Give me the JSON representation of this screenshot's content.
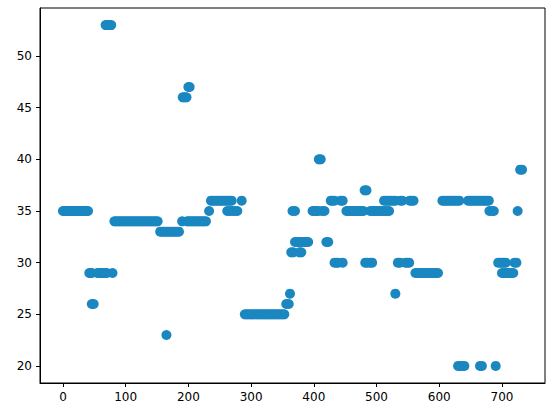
{
  "chart_data": {
    "type": "scatter",
    "color": "#1a87c0",
    "marker": "circle",
    "grid": false,
    "xlim": [
      -36.6,
      768.6
    ],
    "xticks": [
      0,
      100,
      200,
      300,
      400,
      500,
      600,
      700
    ],
    "ylim": [
      18.35,
      54.65
    ],
    "yticks": [
      20,
      25,
      30,
      35,
      40,
      45,
      50
    ],
    "x": [
      0,
      2,
      4,
      6,
      8,
      10,
      12,
      14,
      16,
      18,
      20,
      22,
      24,
      26,
      28,
      30,
      32,
      34,
      36,
      38,
      40,
      42,
      44,
      46,
      55,
      58,
      61,
      64,
      67,
      70,
      79,
      46,
      49,
      68,
      71,
      74,
      77,
      82,
      85,
      88,
      91,
      94,
      97,
      100,
      103,
      106,
      109,
      112,
      115,
      118,
      121,
      124,
      127,
      130,
      133,
      136,
      139,
      142,
      145,
      148,
      151,
      155,
      158,
      161,
      164,
      167,
      170,
      173,
      176,
      179,
      182,
      185,
      165,
      190,
      198,
      201,
      204,
      207,
      210,
      213,
      216,
      219,
      222,
      225,
      228,
      191,
      194,
      197,
      200,
      202,
      233,
      262,
      266,
      270,
      274,
      278,
      236,
      239,
      242,
      245,
      248,
      251,
      254,
      257,
      260,
      263,
      266,
      269,
      285,
      290,
      293,
      296,
      299,
      302,
      305,
      308,
      311,
      314,
      317,
      320,
      323,
      326,
      329,
      332,
      335,
      338,
      341,
      344,
      347,
      350,
      353,
      356,
      360,
      362,
      364,
      367,
      377,
      380,
      366,
      370,
      398,
      401,
      404,
      407,
      413,
      417,
      370,
      373,
      376,
      379,
      382,
      385,
      388,
      391,
      408,
      411,
      420,
      423,
      427,
      430,
      433,
      443,
      446,
      433,
      436,
      439,
      446,
      452,
      455,
      458,
      461,
      464,
      467,
      470,
      473,
      476,
      479,
      481,
      484,
      482,
      485,
      490,
      493,
      490,
      493,
      496,
      499,
      502,
      505,
      508,
      511,
      514,
      517,
      520,
      512,
      515,
      518,
      521,
      524,
      527,
      530,
      538,
      541,
      553,
      556,
      559,
      530,
      534,
      537,
      546,
      549,
      552,
      562,
      565,
      568,
      571,
      574,
      577,
      580,
      583,
      586,
      589,
      592,
      595,
      598,
      605,
      608,
      611,
      614,
      617,
      620,
      623,
      626,
      629,
      632,
      646,
      649,
      652,
      655,
      658,
      661,
      664,
      667,
      670,
      673,
      676,
      679,
      630,
      633,
      636,
      640,
      665,
      668,
      690,
      680,
      684,
      687,
      694,
      697,
      700,
      703,
      706,
      720,
      723,
      700,
      703,
      706,
      709,
      712,
      715,
      718,
      725,
      729,
      732
    ],
    "values": [
      35,
      35,
      35,
      35,
      35,
      35,
      35,
      35,
      35,
      35,
      35,
      35,
      35,
      35,
      35,
      35,
      35,
      35,
      35,
      35,
      35,
      29,
      29,
      29,
      29,
      29,
      29,
      29,
      29,
      29,
      29,
      26,
      26,
      53,
      53,
      53,
      53,
      34,
      34,
      34,
      34,
      34,
      34,
      34,
      34,
      34,
      34,
      34,
      34,
      34,
      34,
      34,
      34,
      34,
      34,
      34,
      34,
      34,
      34,
      34,
      34,
      33,
      33,
      33,
      33,
      33,
      33,
      33,
      33,
      33,
      33,
      33,
      23,
      34,
      34,
      34,
      34,
      34,
      34,
      34,
      34,
      34,
      34,
      34,
      34,
      46,
      46,
      46,
      47,
      47,
      35,
      35,
      35,
      35,
      35,
      35,
      36,
      36,
      36,
      36,
      36,
      36,
      36,
      36,
      36,
      36,
      36,
      36,
      36,
      25,
      25,
      25,
      25,
      25,
      25,
      25,
      25,
      25,
      25,
      25,
      25,
      25,
      25,
      25,
      25,
      25,
      25,
      25,
      25,
      25,
      25,
      26,
      26,
      27,
      31,
      31,
      31,
      31,
      35,
      35,
      35,
      35,
      35,
      35,
      35,
      35,
      32,
      32,
      32,
      32,
      32,
      32,
      32,
      32,
      40,
      40,
      32,
      32,
      36,
      36,
      36,
      36,
      36,
      30,
      30,
      30,
      30,
      35,
      35,
      35,
      35,
      35,
      35,
      35,
      35,
      35,
      35,
      37,
      37,
      30,
      30,
      30,
      30,
      35,
      35,
      35,
      35,
      35,
      35,
      35,
      35,
      35,
      35,
      35,
      36,
      36,
      36,
      36,
      36,
      36,
      36,
      36,
      36,
      36,
      36,
      36,
      27,
      30,
      30,
      30,
      30,
      30,
      29,
      29,
      29,
      29,
      29,
      29,
      29,
      29,
      29,
      29,
      29,
      29,
      29,
      36,
      36,
      36,
      36,
      36,
      36,
      36,
      36,
      36,
      36,
      36,
      36,
      36,
      36,
      36,
      36,
      36,
      36,
      36,
      36,
      36,
      36,
      20,
      20,
      20,
      20,
      20,
      20,
      20,
      35,
      35,
      35,
      30,
      30,
      30,
      30,
      30,
      30,
      30,
      29,
      29,
      29,
      29,
      29,
      29,
      29,
      35,
      39,
      39
    ]
  }
}
